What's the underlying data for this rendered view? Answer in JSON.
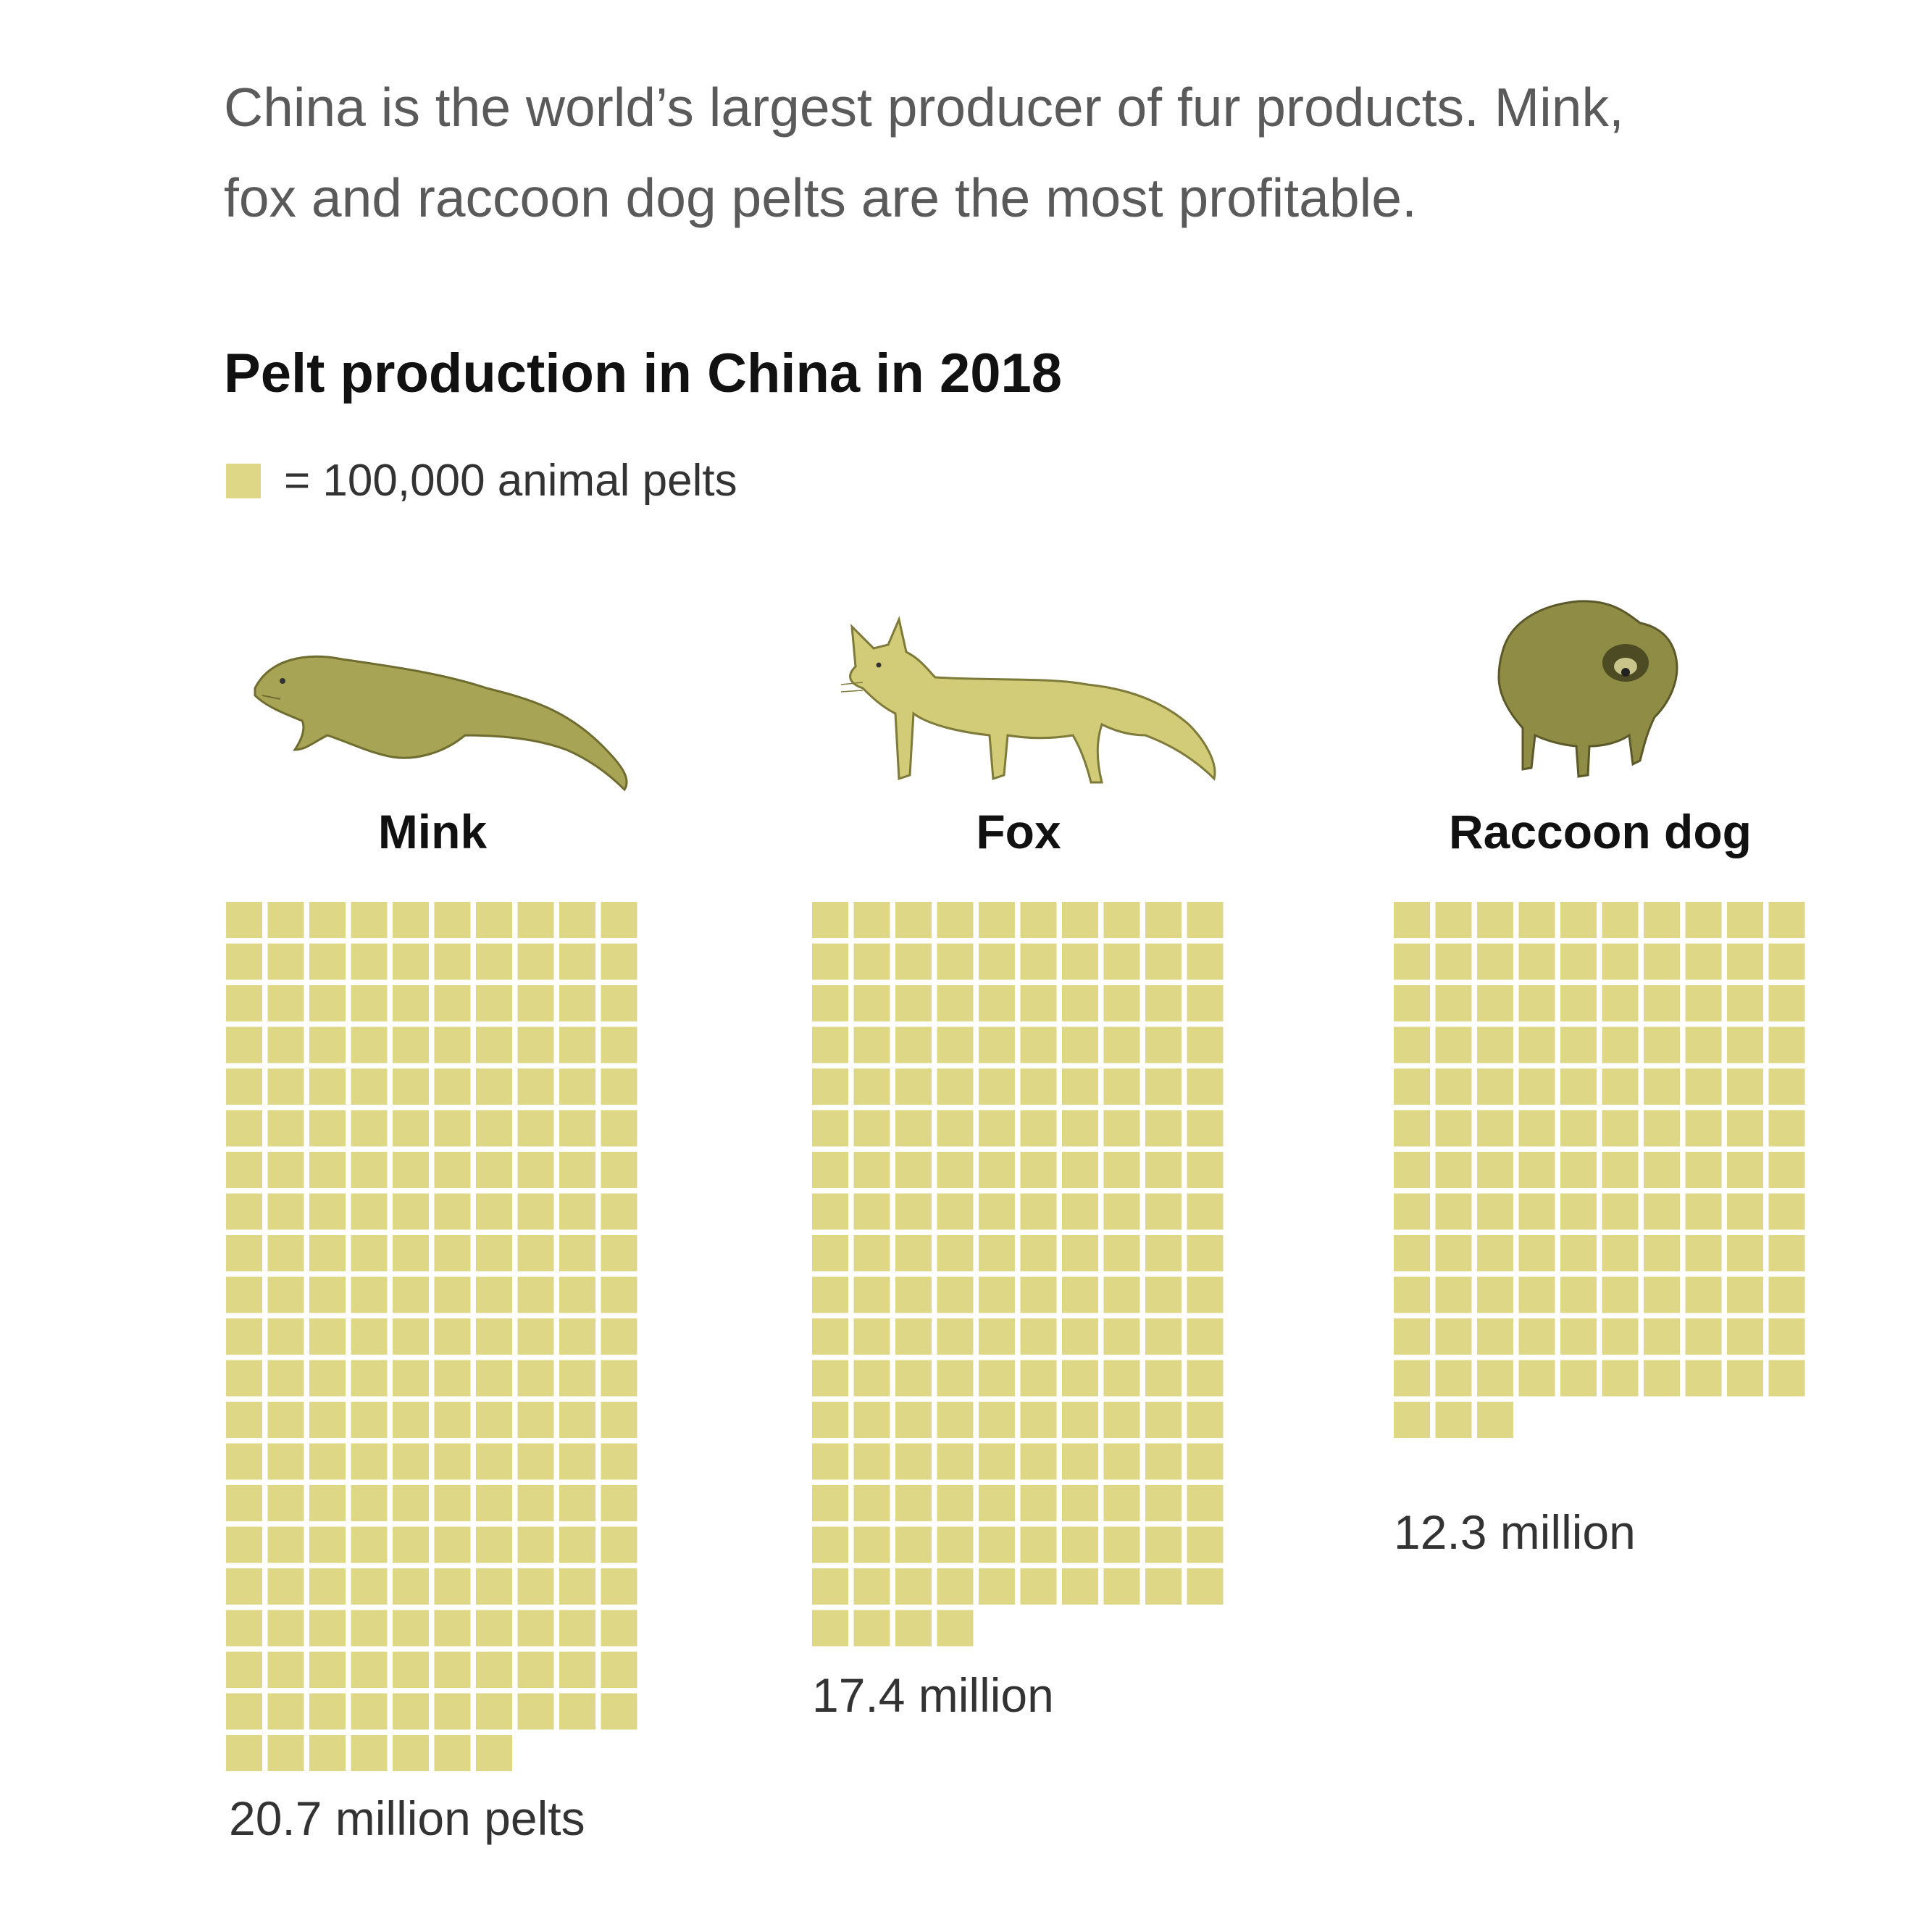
{
  "intro": {
    "line1": "China is the world’s largest producer of fur products. Mink,",
    "line2": "fox and raccoon dog pelts are the most profitable."
  },
  "chart": {
    "title": "Pelt production in China in 2018",
    "legend_label": "= 100,000 animal pelts",
    "legend_color": "#ddd786"
  },
  "animals": [
    {
      "name": "Mink",
      "icon": "mink-illustration",
      "label": "20.7 million pelts"
    },
    {
      "name": "Fox",
      "icon": "fox-illustration",
      "label": "17.4 million"
    },
    {
      "name": "Raccoon dog",
      "icon": "raccoon-dog-illustration",
      "label": "12.3 million"
    }
  ],
  "chart_data": {
    "type": "waffle",
    "title": "Pelt production in China in 2018",
    "unit_per_square": 100000,
    "squares_per_row": 10,
    "categories": [
      "Mink",
      "Fox",
      "Raccoon dog"
    ],
    "values": [
      20700000,
      17400000,
      12300000
    ],
    "squares": [
      207,
      174,
      123
    ],
    "labels": [
      "20.7 million pelts",
      "17.4 million",
      "12.3 million"
    ]
  }
}
